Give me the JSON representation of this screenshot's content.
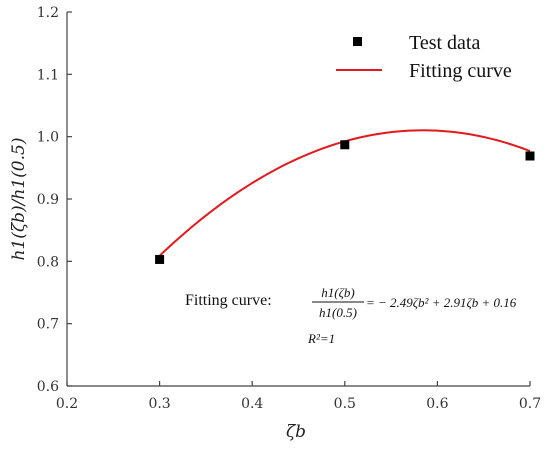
{
  "chart_data": {
    "type": "scatter",
    "xlabel": "ζb",
    "ylabel": "h1(ζb)/h1(0.5)",
    "xlim": [
      0.2,
      0.7
    ],
    "ylim": [
      0.6,
      1.2
    ],
    "x_ticks": [
      "0.2",
      "0.3",
      "0.4",
      "0.5",
      "0.6",
      "0.7"
    ],
    "y_ticks": [
      "0.6",
      "0.7",
      "0.8",
      "0.9",
      "1.0",
      "1.1",
      "1.2"
    ],
    "grid": false,
    "legend_position": "top-right",
    "series": [
      {
        "name": "Test data",
        "kind": "scatter",
        "marker": "square",
        "color": "#000000",
        "x": [
          0.3,
          0.5,
          0.7
        ],
        "y": [
          0.803,
          0.987,
          0.969
        ]
      },
      {
        "name": "Fitting curve",
        "kind": "line",
        "color": "#e31a1c",
        "function": {
          "a": -2.49,
          "b": 2.91,
          "c": 0.16
        },
        "x_range": [
          0.3,
          0.7
        ]
      }
    ],
    "annotation": {
      "prefix": "Fitting curve:",
      "numerator": "h1(ζb)",
      "denominator": "h1(0.5)",
      "equation": "= − 2.49ζb² + 2.91ζb + 0.16",
      "r2": "R²=1"
    }
  }
}
